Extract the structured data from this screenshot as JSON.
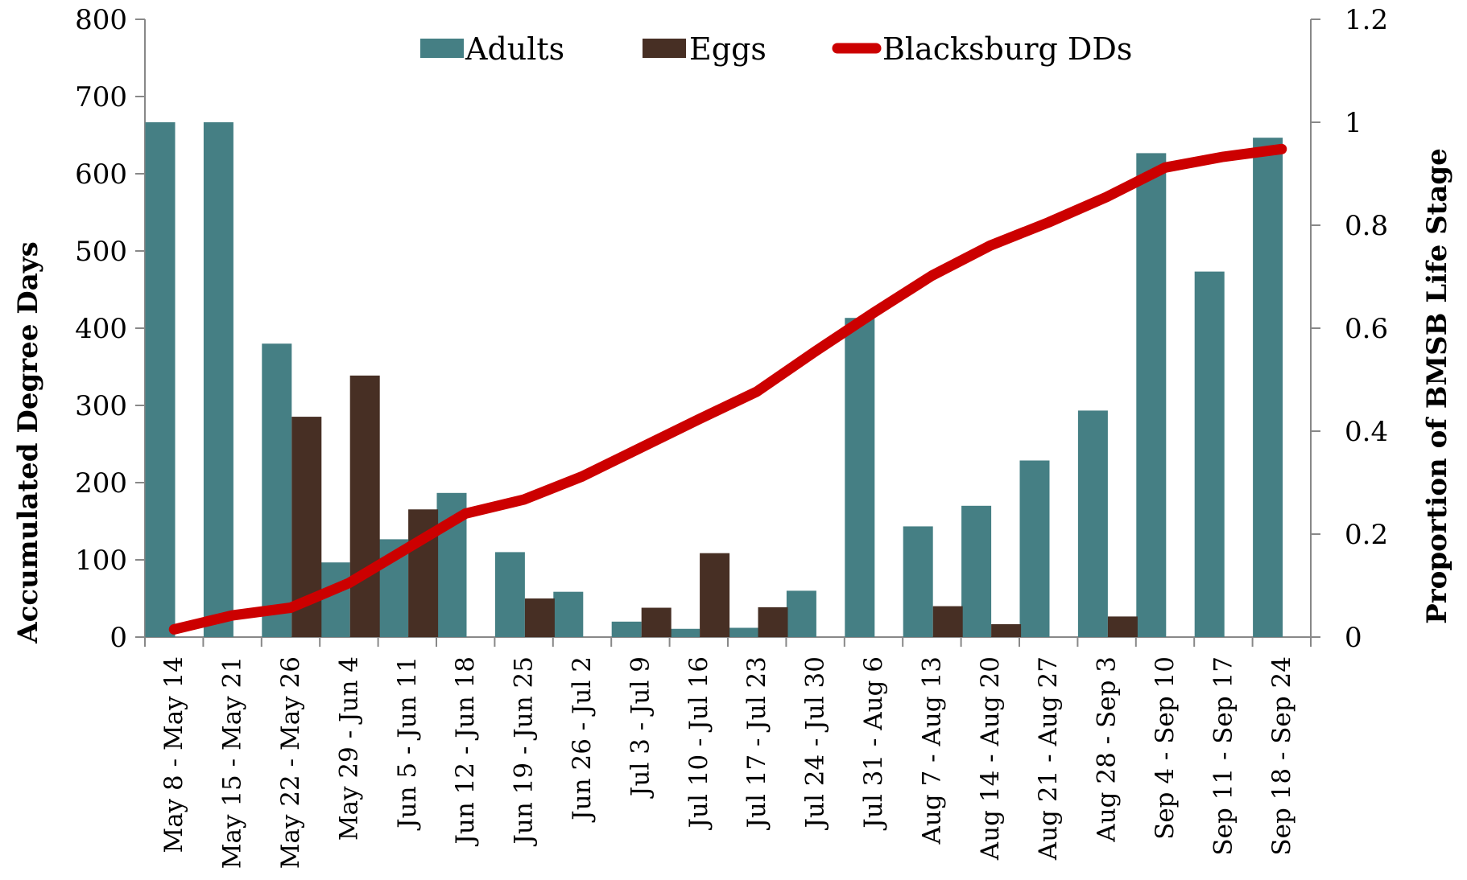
{
  "chart_data": {
    "type": "bar",
    "categories": [
      "May 8 - May 14",
      "May 15 - May 21",
      "May 22 - May 26",
      "May 29 - Jun 4",
      "Jun 5 - Jun 11",
      "Jun 12 - Jun 18",
      "Jun 19 - Jun 25",
      "Jun 26 - Jul 2",
      "Jul 3 - Jul 9",
      "Jul 10 - Jul 16",
      "Jul 17 - Jul 23",
      "Jul 24 - Jul 30",
      "Jul 31 - Aug 6",
      "Aug 7 - Aug 13",
      "Aug 14 - Aug 20",
      "Aug 21 - Aug 27",
      "Aug 28 - Sep 3",
      "Sep 4 - Sep 10",
      "Sep 11 - Sep 17",
      "Sep 18 - Sep 24"
    ],
    "series": [
      {
        "name": "Adults",
        "type": "bar",
        "axis": "right",
        "color": "#457F84",
        "values": [
          1.0,
          1.0,
          0.57,
          0.145,
          0.19,
          0.28,
          0.165,
          0.088,
          0.03,
          0.016,
          0.018,
          0.09,
          0.62,
          0.215,
          0.255,
          0.343,
          0.44,
          0.94,
          0.71,
          0.97
        ]
      },
      {
        "name": "Eggs",
        "type": "bar",
        "axis": "right",
        "color": "#472F24",
        "values": [
          0,
          0,
          0.428,
          0.508,
          0.248,
          0,
          0.075,
          0,
          0.057,
          0.163,
          0.058,
          0,
          0,
          0.06,
          0.025,
          0,
          0.04,
          0,
          0,
          0
        ]
      },
      {
        "name": "Blacksburg DDs",
        "type": "line",
        "axis": "left",
        "color": "#CC0000",
        "values": [
          10,
          28,
          38,
          70,
          115,
          160,
          178,
          208,
          245,
          282,
          318,
          370,
          420,
          468,
          507,
          537,
          570,
          608,
          622,
          632
        ]
      }
    ],
    "ylabel": "Accumulated Degree Days",
    "y2label": "Proportion of BMSB Life Stage",
    "ylim": [
      0,
      800
    ],
    "y2lim": [
      0,
      1.2
    ],
    "yticks": [
      "0",
      "100",
      "200",
      "300",
      "400",
      "500",
      "600",
      "700",
      "800"
    ],
    "y2ticks": [
      "0",
      "0.2",
      "0.4",
      "0.6",
      "0.8",
      "1",
      "1.2"
    ],
    "legend": {
      "placement": "top-center",
      "items": [
        "Adults",
        "Eggs",
        "Blacksburg DDs"
      ]
    },
    "grid": false
  }
}
